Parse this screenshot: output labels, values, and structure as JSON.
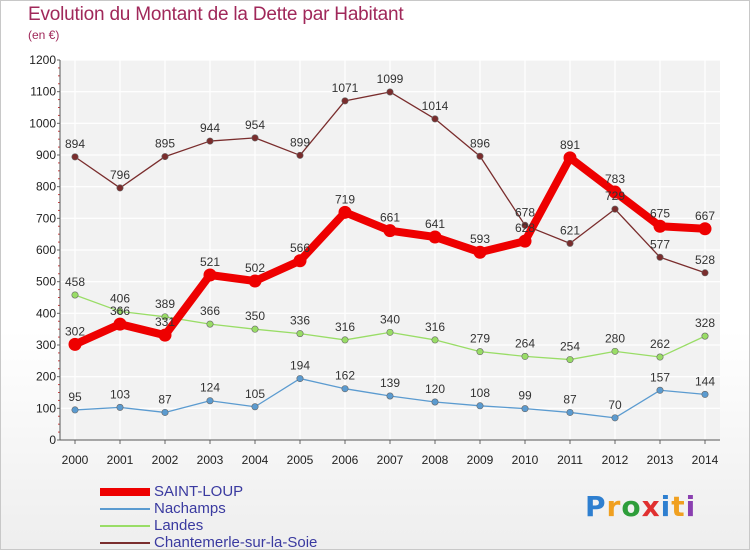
{
  "title": "Evolution du Montant de la Dette par Habitant",
  "subtitle": "(en €)",
  "logo": {
    "letters": [
      "P",
      "r",
      "o",
      "x",
      "i",
      "t",
      "i"
    ],
    "colors": [
      "#2e7fd0",
      "#f0a020",
      "#2e9e3a",
      "#e03030",
      "#2e7fd0",
      "#f0a020",
      "#8a3fb0"
    ]
  },
  "chart_data": {
    "type": "line",
    "title": "Evolution du Montant de la Dette par Habitant",
    "subtitle": "(en €)",
    "x": [
      "2000",
      "2001",
      "2002",
      "2003",
      "2004",
      "2005",
      "2006",
      "2007",
      "2008",
      "2009",
      "2010",
      "2011",
      "2012",
      "2013",
      "2014"
    ],
    "ylim": [
      0,
      1200
    ],
    "yticks": [
      "0",
      "100",
      "200",
      "300",
      "400",
      "500",
      "600",
      "700",
      "800",
      "900",
      "1000",
      "1100",
      "1200"
    ],
    "grid": true,
    "legend_position": "bottom-left",
    "series": [
      {
        "name": "SAINT-LOUP",
        "color": "#ee0000",
        "values": [
          302,
          366,
          331,
          521,
          502,
          566,
          719,
          661,
          641,
          593,
          628,
          891,
          783,
          675,
          667
        ],
        "labels": [
          "302",
          "366",
          "331",
          "521",
          "502",
          "566",
          "719",
          "661",
          "641",
          "593",
          "628",
          "891",
          "783",
          "675",
          "667"
        ]
      },
      {
        "name": "Nachamps",
        "color": "#5b9bd0",
        "values": [
          95,
          103,
          87,
          124,
          105,
          194,
          162,
          139,
          120,
          108,
          99,
          87,
          70,
          157,
          144
        ],
        "labels": [
          "95",
          "103",
          "87",
          "124",
          "105",
          "194",
          "162",
          "139",
          "120",
          "108",
          "99",
          "87",
          "70",
          "157",
          "144"
        ]
      },
      {
        "name": "Landes",
        "color": "#99dd66",
        "values": [
          458,
          406,
          389,
          366,
          350,
          336,
          316,
          340,
          316,
          279,
          264,
          254,
          280,
          262,
          328
        ],
        "labels": [
          "458",
          "406",
          "389",
          "366",
          "350",
          "336",
          "316",
          "340",
          "316",
          "279",
          "264",
          "254",
          "280",
          "262",
          "328"
        ]
      },
      {
        "name": "Chantemerle-sur-la-Soie",
        "color": "#7a2d2d",
        "values": [
          894,
          796,
          895,
          944,
          954,
          899,
          1071,
          1099,
          1014,
          896,
          678,
          621,
          729,
          577,
          528
        ],
        "labels": [
          "894",
          "796",
          "895",
          "944",
          "954",
          "899",
          "1071",
          "1099",
          "1014",
          "896",
          "678",
          "621",
          "729",
          "577",
          "528"
        ]
      }
    ]
  }
}
